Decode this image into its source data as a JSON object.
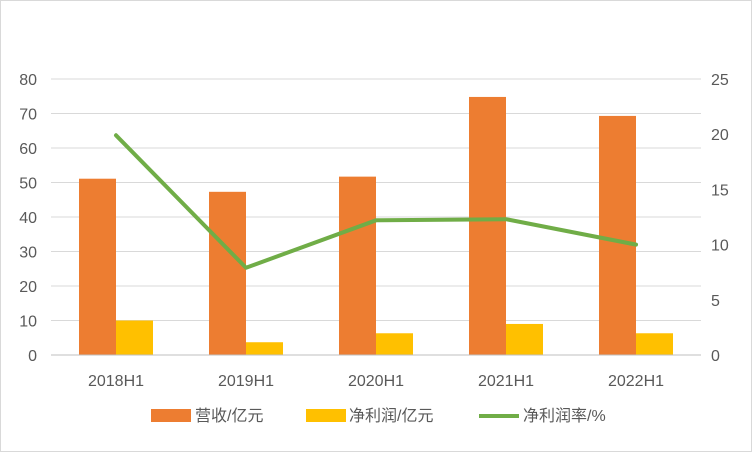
{
  "chart_data": {
    "type": "bar",
    "title": "",
    "xlabel": "",
    "ylabel": "",
    "categories": [
      "2018H1",
      "2019H1",
      "2020H1",
      "2021H1",
      "2022H1"
    ],
    "series": [
      {
        "name": "营收/亿元",
        "type": "bar",
        "axis": "left",
        "color": "#ED7D31",
        "values": [
          51.1,
          47.3,
          51.7,
          74.8,
          69.3
        ]
      },
      {
        "name": "净利润/亿元",
        "type": "bar",
        "axis": "left",
        "color": "#FFC000",
        "values": [
          10.0,
          3.7,
          6.3,
          9.0,
          6.3
        ]
      },
      {
        "name": "净利润率/%",
        "type": "line",
        "axis": "right",
        "color": "#70AD47",
        "values": [
          19.9,
          7.9,
          12.2,
          12.3,
          10.0
        ]
      }
    ],
    "ylim": [
      0,
      80
    ],
    "yticks": [
      "0",
      "10",
      "20",
      "30",
      "40",
      "50",
      "60",
      "70",
      "80"
    ],
    "y2lim": [
      0,
      25
    ],
    "y2ticks": [
      "0",
      "5",
      "10",
      "15",
      "20",
      "25"
    ],
    "grid": true,
    "legend": "bottom"
  }
}
